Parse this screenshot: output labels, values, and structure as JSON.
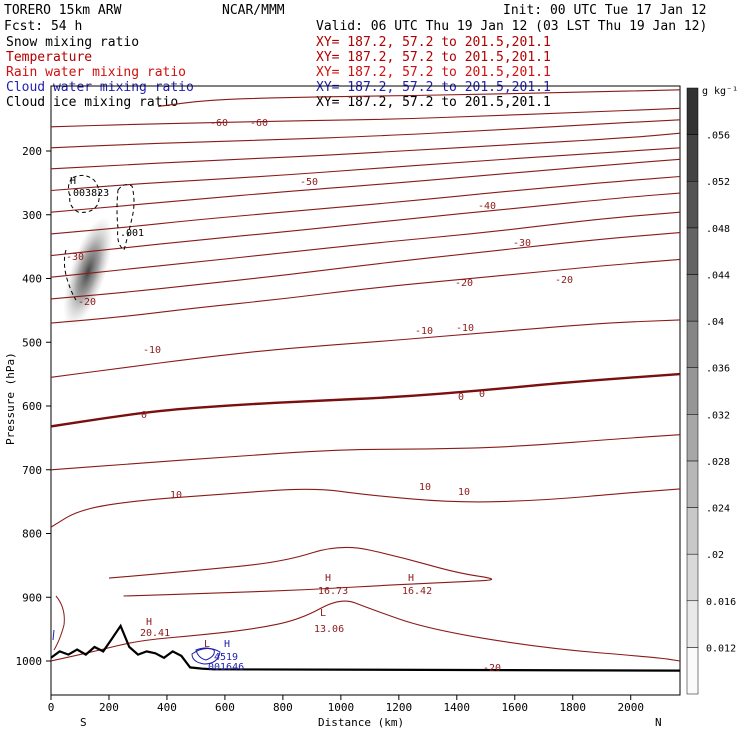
{
  "header": {
    "title": "TORERO  15km ARW",
    "center": "NCAR/MMM",
    "init": "Init: 00 UTC Tue 17 Jan 12",
    "fcst": "Fcst:   54 h",
    "valid": "Valid: 06 UTC Thu 19 Jan 12 (03 LST Thu 19 Jan 12)"
  },
  "fields": [
    {
      "label": "Snow mixing ratio",
      "xy": "XY= 187.2, 57.2 to 201.5,201.1",
      "color": "#000000"
    },
    {
      "label": "Temperature",
      "xy": "XY= 187.2, 57.2 to 201.5,201.1",
      "color": "#b00000"
    },
    {
      "label": "Rain water mixing ratio",
      "xy": "XY= 187.2, 57.2 to 201.5,201.1",
      "color": "#d01010"
    },
    {
      "label": "Cloud water mixing ratio",
      "xy": "XY= 187.2, 57.2 to 201.5,201.1",
      "color": "#1f1fb0"
    },
    {
      "label": "Cloud ice mixing ratio",
      "xy": "XY= 187.2, 57.2 to 201.5,201.1",
      "color": "#000000"
    }
  ],
  "chart_data": {
    "type": "cross-section contour",
    "xlabel": "Distance (km)",
    "ylabel": "Pressure (hPa)",
    "xlim": [
      0,
      2170
    ],
    "ylim": [
      1045,
      100
    ],
    "x_ticks": [
      0,
      200,
      400,
      600,
      800,
      1000,
      1200,
      1400,
      1600,
      1800,
      2000
    ],
    "y_ticks": [
      200,
      300,
      400,
      500,
      600,
      700,
      800,
      900,
      1000
    ],
    "x_end_labels": [
      "S",
      "N"
    ],
    "colorbar": {
      "unit": "g kg⁻¹",
      "ticks": [
        "0.012",
        "0.016",
        ".02",
        ".024",
        ".028",
        ".032",
        ".036",
        ".04",
        ".044",
        ".048",
        ".052",
        ".056"
      ]
    },
    "isotherms": [
      {
        "level": -60,
        "labels": [
          "-60",
          "-60"
        ],
        "points": [
          [
            370,
            130
          ],
          [
            540,
            120
          ],
          [
            800,
            116
          ],
          [
            1100,
            114
          ],
          [
            1400,
            112
          ],
          [
            1800,
            108
          ],
          [
            2170,
            104
          ]
        ]
      },
      {
        "level": -55,
        "labels": [],
        "points": [
          [
            0,
            162
          ],
          [
            300,
            158
          ],
          [
            600,
            155
          ],
          [
            900,
            152
          ],
          [
            1200,
            150
          ],
          [
            1500,
            145
          ],
          [
            1800,
            140
          ],
          [
            2170,
            133
          ]
        ]
      },
      {
        "level": -50,
        "labels": [
          "-50"
        ],
        "points": [
          [
            0,
            195
          ],
          [
            250,
            190
          ],
          [
            500,
            186
          ],
          [
            800,
            182
          ],
          [
            1100,
            177
          ],
          [
            1500,
            168
          ],
          [
            1800,
            160
          ],
          [
            2170,
            151
          ]
        ]
      },
      {
        "level": -45,
        "labels": [],
        "points": [
          [
            0,
            228
          ],
          [
            250,
            222
          ],
          [
            500,
            216
          ],
          [
            900,
            208
          ],
          [
            1200,
            200
          ],
          [
            1600,
            190
          ],
          [
            2000,
            179
          ],
          [
            2170,
            172
          ]
        ]
      },
      {
        "level": -40,
        "labels": [
          "-40"
        ],
        "points": [
          [
            0,
            262
          ],
          [
            250,
            253
          ],
          [
            500,
            246
          ],
          [
            800,
            238
          ],
          [
            1100,
            228
          ],
          [
            1400,
            218
          ],
          [
            1800,
            206
          ],
          [
            2170,
            195
          ]
        ]
      },
      {
        "level": -35,
        "labels": [],
        "points": [
          [
            0,
            296
          ],
          [
            250,
            286
          ],
          [
            500,
            276
          ],
          [
            800,
            264
          ],
          [
            1200,
            250
          ],
          [
            1600,
            234
          ],
          [
            2000,
            219
          ],
          [
            2170,
            213
          ]
        ]
      },
      {
        "level": -30,
        "labels": [
          "-30",
          "-30"
        ],
        "points": [
          [
            0,
            330
          ],
          [
            250,
            320
          ],
          [
            500,
            308
          ],
          [
            800,
            296
          ],
          [
            1200,
            280
          ],
          [
            1600,
            262
          ],
          [
            2000,
            246
          ],
          [
            2170,
            240
          ]
        ]
      },
      {
        "level": -25,
        "labels": [],
        "points": [
          [
            0,
            364
          ],
          [
            250,
            352
          ],
          [
            500,
            340
          ],
          [
            800,
            327
          ],
          [
            1200,
            308
          ],
          [
            1600,
            290
          ],
          [
            2000,
            272
          ],
          [
            2170,
            266
          ]
        ]
      },
      {
        "level": -20,
        "labels": [
          "-20",
          "-20",
          "-20"
        ],
        "points": [
          [
            0,
            398
          ],
          [
            250,
            386
          ],
          [
            500,
            374
          ],
          [
            800,
            360
          ],
          [
            1100,
            345
          ],
          [
            1500,
            328
          ],
          [
            1900,
            306
          ],
          [
            2170,
            296
          ]
        ]
      },
      {
        "level": -15,
        "labels": [],
        "points": [
          [
            0,
            432
          ],
          [
            250,
            422
          ],
          [
            500,
            410
          ],
          [
            800,
            395
          ],
          [
            1100,
            378
          ],
          [
            1500,
            358
          ],
          [
            1900,
            338
          ],
          [
            2170,
            328
          ]
        ]
      },
      {
        "level": -10,
        "labels": [
          "-10",
          "-10",
          "-10"
        ],
        "points": [
          [
            0,
            470
          ],
          [
            250,
            460
          ],
          [
            500,
            446
          ],
          [
            800,
            432
          ],
          [
            1100,
            415
          ],
          [
            1500,
            398
          ],
          [
            1900,
            380
          ],
          [
            2170,
            370
          ]
        ]
      },
      {
        "level": -5,
        "labels": [],
        "points": [
          [
            0,
            555
          ],
          [
            250,
            540
          ],
          [
            500,
            525
          ],
          [
            800,
            510
          ],
          [
            1100,
            500
          ],
          [
            1500,
            485
          ],
          [
            1900,
            470
          ],
          [
            2170,
            465
          ]
        ]
      },
      {
        "level": 0,
        "labels": [
          "0",
          "0",
          "0"
        ],
        "points": [
          [
            0,
            632
          ],
          [
            200,
            618
          ],
          [
            400,
            606
          ],
          [
            650,
            598
          ],
          [
            900,
            592
          ],
          [
            1200,
            586
          ],
          [
            1500,
            575
          ],
          [
            1800,
            562
          ],
          [
            2170,
            550
          ]
        ]
      },
      {
        "level": 5,
        "labels": [],
        "points": [
          [
            0,
            700
          ],
          [
            300,
            690
          ],
          [
            600,
            680
          ],
          [
            1000,
            668
          ],
          [
            1300,
            668
          ],
          [
            1600,
            664
          ],
          [
            2000,
            650
          ],
          [
            2170,
            645
          ]
        ]
      },
      {
        "level": 10,
        "labels": [
          "10",
          "10",
          "10"
        ],
        "points": [
          [
            0,
            790
          ],
          [
            100,
            762
          ],
          [
            300,
            748
          ],
          [
            600,
            738
          ],
          [
            900,
            728
          ],
          [
            1100,
            740
          ],
          [
            1400,
            752
          ],
          [
            1700,
            748
          ],
          [
            2000,
            736
          ],
          [
            2170,
            730
          ]
        ]
      },
      {
        "level": 15,
        "labels": [
          "H 16.73",
          "H 16.42"
        ],
        "points": [
          [
            200,
            870
          ],
          [
            500,
            858
          ],
          [
            800,
            845
          ],
          [
            1000,
            816
          ],
          [
            1200,
            836
          ],
          [
            1400,
            862
          ],
          [
            1550,
            872
          ],
          [
            1450,
            875
          ],
          [
            1200,
            880
          ],
          [
            900,
            888
          ],
          [
            600,
            893
          ],
          [
            250,
            898
          ]
        ]
      },
      {
        "level": 20,
        "labels": [
          "H 20.41",
          "L 13.06",
          "-20"
        ],
        "points": [
          [
            0,
            1000
          ],
          [
            150,
            985
          ],
          [
            300,
            968
          ],
          [
            500,
            960
          ],
          [
            700,
            950
          ],
          [
            860,
            935
          ],
          [
            1000,
            900
          ],
          [
            1100,
            918
          ],
          [
            1300,
            950
          ],
          [
            1700,
            980
          ],
          [
            2100,
            995
          ],
          [
            2170,
            1000
          ]
        ]
      }
    ],
    "highs_lows": [
      {
        "type": "H",
        "value": "20.41",
        "x": 330,
        "p": 942
      },
      {
        "type": "H",
        "value": "16.73",
        "x": 950,
        "p": 880
      },
      {
        "type": "H",
        "value": "16.42",
        "x": 1240,
        "p": 880
      },
      {
        "type": "L",
        "value": "13.06",
        "x": 935,
        "p": 930
      },
      {
        "type": "H",
        "value": "003823",
        "x": 80,
        "p": 265
      },
      {
        "type": "H",
        "value": "4519",
        "x": 560,
        "p": 988
      },
      {
        "type": "L",
        "value": "001646",
        "x": 525,
        "p": 995
      }
    ],
    "cloud_ice_contour_labels": [
      ".001",
      ".003823"
    ],
    "snow_shading": {
      "x_range": [
        60,
        200
      ],
      "p_range": [
        300,
        470
      ],
      "max": 0.056
    },
    "terrain": {
      "x": [
        0,
        30,
        60,
        90,
        120,
        150,
        180,
        210,
        240,
        270,
        300,
        330,
        360,
        390,
        420,
        450,
        480,
        520,
        560,
        2170
      ],
      "p": [
        995,
        985,
        990,
        982,
        990,
        978,
        985,
        965,
        945,
        978,
        990,
        985,
        988,
        995,
        985,
        992,
        1010,
        1012,
        1013,
        1015
      ]
    }
  }
}
